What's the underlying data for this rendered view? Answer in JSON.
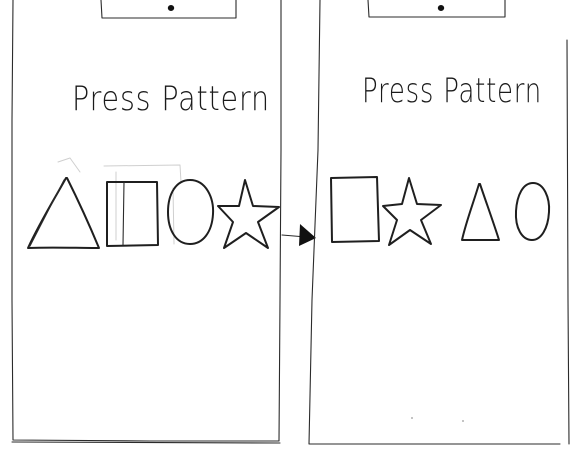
{
  "screens": [
    {
      "title": "Press Pattern",
      "pattern": [
        "triangle-icon",
        "square-icon",
        "circle-icon",
        "star-icon"
      ]
    },
    {
      "title": "Press Pattern",
      "pattern": [
        "square-icon",
        "star-icon",
        "triangle-icon",
        "circle-icon"
      ]
    }
  ],
  "colors": {
    "ink": "#1f1f1f",
    "paper": "#ffffff",
    "ghost": "#cfcfcf"
  }
}
